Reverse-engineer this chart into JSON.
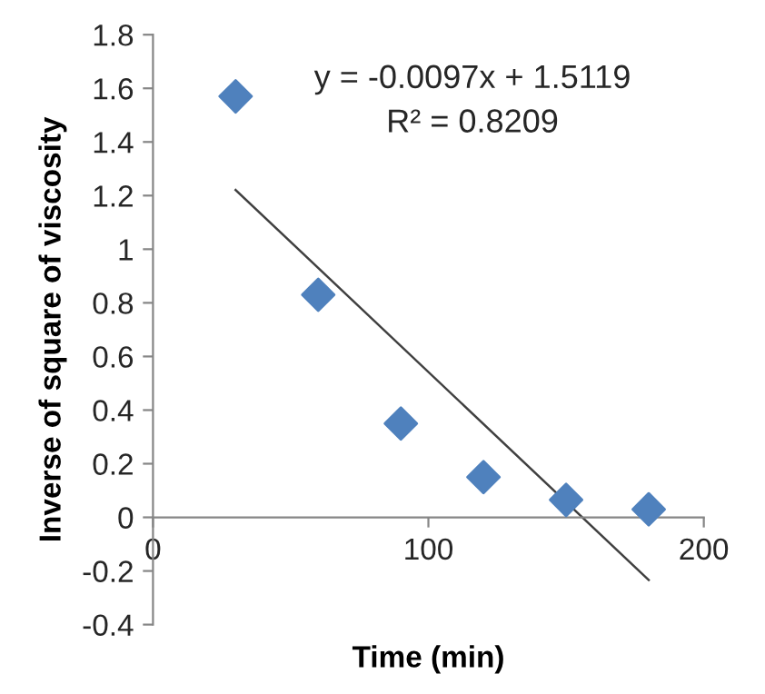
{
  "chart_data": {
    "type": "scatter",
    "xlabel": "Time (min)",
    "ylabel": "Inverse of square of viscosity",
    "series": [
      {
        "color": "#4f81bd",
        "marker": "diamond",
        "x": [
          30,
          60,
          90,
          120,
          150,
          180
        ],
        "values": [
          1.57,
          0.83,
          0.35,
          0.15,
          0.065,
          0.03
        ]
      },
      {
        "type": "line",
        "color": "#404040",
        "marker": "none",
        "line_style": "solid",
        "x": [
          30,
          180
        ],
        "values": [
          1.221,
          -0.234
        ]
      }
    ],
    "annotations": [
      "y = -0.0097x + 1.5119",
      "R² = 0.8209"
    ],
    "xlim": [
      0,
      200
    ],
    "xticks": [
      0,
      100,
      200
    ],
    "ylim": [
      -0.4,
      1.8
    ],
    "yticks": [
      -0.4,
      -0.2,
      0,
      0.2,
      0.4,
      0.6,
      0.8,
      1,
      1.2,
      1.4,
      1.6,
      1.8
    ],
    "grid": false,
    "legend": false
  }
}
